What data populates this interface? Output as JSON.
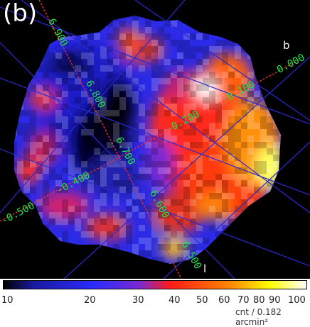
{
  "panel_label": "(b)",
  "axis_letters": {
    "b": "b",
    "l": "l"
  },
  "coords_l": [
    "6.900",
    "6.800",
    "6.700",
    "6.600",
    "6.500"
  ],
  "coords_b": [
    "0.000",
    "-0.100",
    "-0.200",
    "-0.400",
    "-0.500"
  ],
  "colorbar": {
    "ticks": [
      "10",
      "20",
      "30",
      "40",
      "50",
      "60",
      "70",
      "80",
      "90",
      "100"
    ],
    "unit": "cnt / 0.182 arcmin²"
  },
  "colors": {
    "grid": "#2a2ad0",
    "axis": "#ff3030",
    "coord_text": "#22e04a"
  }
}
